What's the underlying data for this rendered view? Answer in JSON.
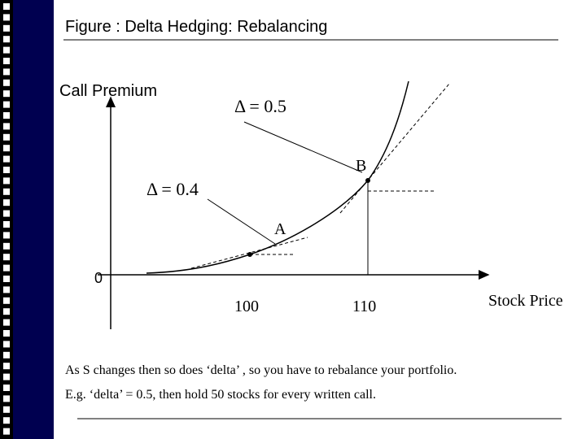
{
  "header": {
    "title": "Figure : Delta Hedging: Rebalancing"
  },
  "diagram": {
    "y_axis_label": "Call Premium",
    "x_axis_label": "Stock Price",
    "origin_label": "0",
    "points": [
      {
        "label": "A",
        "delta_label": "Δ = 0.4",
        "x_label": "100"
      },
      {
        "label": "B",
        "delta_label": "Δ = 0.5",
        "x_label": "110"
      }
    ]
  },
  "caption": [
    "As S changes then so does ‘delta’ , so you have to rebalance your portfolio.",
    "E.g. ‘delta’ = 0.5, then hold  50 stocks for every written call."
  ]
}
